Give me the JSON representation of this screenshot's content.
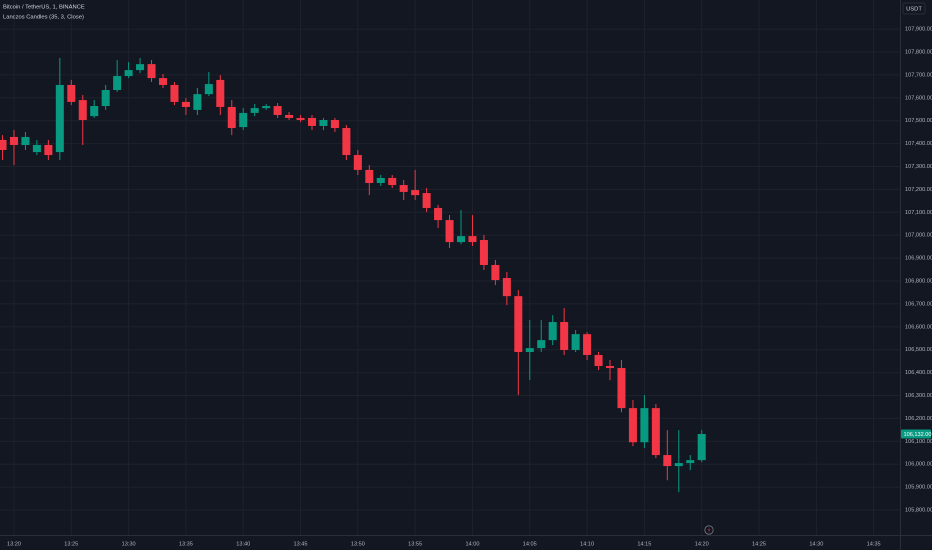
{
  "chart_data": {
    "type": "candlestick",
    "title": "Bitcoin / TetherUS, 1, BINANCE",
    "subtitle": "Lanczos Candles (35, 3, Close)",
    "currency": "USDT",
    "up_color": "#089981",
    "down_color": "#f23645",
    "grid": true,
    "x": [
      19,
      20,
      21,
      22,
      23,
      24,
      25,
      26,
      27,
      28,
      29,
      30,
      31,
      32,
      33,
      34,
      35,
      36,
      37,
      38,
      39,
      40,
      41,
      42,
      43,
      44,
      45,
      46,
      47,
      48,
      49,
      50,
      51,
      52,
      53,
      54,
      55,
      56,
      57,
      58,
      59,
      60,
      61,
      62,
      63,
      64,
      65,
      66,
      67,
      68,
      69,
      70,
      71,
      72,
      73,
      74,
      75,
      76,
      77,
      78,
      79,
      80
    ],
    "open": [
      107416,
      107429,
      107394,
      107363,
      107394,
      107363,
      107656,
      107590,
      107520,
      107564,
      107634,
      107695,
      107721,
      107747,
      107686,
      107656,
      107582,
      107547,
      107616,
      107678,
      107560,
      107472,
      107534,
      107555,
      107564,
      107525,
      107512,
      107512,
      107477,
      107503,
      107468,
      107350,
      107285,
      107228,
      107250,
      107219,
      107197,
      107184,
      107119,
      107066,
      106970,
      106996,
      106979,
      106870,
      106813,
      106734,
      106490,
      106507,
      106542,
      106621,
      106499,
      106568,
      106477,
      106429,
      106420,
      106245,
      106096,
      106245,
      106040,
      105992,
      106005,
      106018
    ],
    "high": [
      107437,
      107459,
      107451,
      107416,
      107416,
      107774,
      107678,
      107612,
      107590,
      107656,
      107765,
      107756,
      107774,
      107765,
      107704,
      107669,
      107599,
      107643,
      107713,
      107699,
      107590,
      107555,
      107573,
      107573,
      107577,
      107538,
      107525,
      107525,
      107512,
      107512,
      107481,
      107372,
      107306,
      107263,
      107263,
      107241,
      107285,
      107206,
      107132,
      107088,
      107110,
      107088,
      107001,
      106892,
      106839,
      106761,
      106630,
      106630,
      106651,
      106682,
      106586,
      106577,
      106490,
      106455,
      106455,
      106280,
      106302,
      106263,
      106149,
      106149,
      106040,
      106149
    ],
    "low": [
      107328,
      107306,
      107372,
      107350,
      107328,
      107328,
      107568,
      107394,
      107512,
      107547,
      107625,
      107686,
      107708,
      107669,
      107643,
      107568,
      107525,
      107525,
      107608,
      107525,
      107437,
      107459,
      107520,
      107547,
      107512,
      107503,
      107494,
      107459,
      107459,
      107451,
      107328,
      107263,
      107175,
      107215,
      107206,
      107154,
      107154,
      107101,
      107031,
      106944,
      106961,
      106953,
      106848,
      106782,
      106695,
      106302,
      106367,
      106490,
      106520,
      106477,
      106490,
      106455,
      106411,
      106367,
      106227,
      106079,
      106071,
      106027,
      105930,
      105878,
      105974,
      106009
    ],
    "close": [
      107372,
      107394,
      107429,
      107394,
      107350,
      107656,
      107582,
      107503,
      107564,
      107634,
      107695,
      107721,
      107747,
      107686,
      107656,
      107582,
      107560,
      107616,
      107660,
      107560,
      107468,
      107534,
      107555,
      107564,
      107525,
      107512,
      107503,
      107477,
      107503,
      107468,
      107350,
      107285,
      107228,
      107250,
      107219,
      107189,
      107175,
      107119,
      107066,
      106970,
      106996,
      106970,
      106870,
      106804,
      106734,
      106490,
      106507,
      106542,
      106621,
      106499,
      106568,
      106477,
      106429,
      106420,
      106245,
      106096,
      106245,
      106040,
      105992,
      106005,
      106018,
      106132
    ],
    "last_price": {
      "value": 106132,
      "label": "106,132.00"
    },
    "xlim": [
      18.78,
      97.3
    ],
    "xticks": [
      {
        "value": 20,
        "label": "13:20"
      },
      {
        "value": 25,
        "label": "13:25"
      },
      {
        "value": 30,
        "label": "13:30"
      },
      {
        "value": 35,
        "label": "13:35"
      },
      {
        "value": 40,
        "label": "13:40"
      },
      {
        "value": 45,
        "label": "13:45"
      },
      {
        "value": 50,
        "label": "13:50"
      },
      {
        "value": 55,
        "label": "13:55"
      },
      {
        "value": 60,
        "label": "14:00"
      },
      {
        "value": 65,
        "label": "14:05"
      },
      {
        "value": 70,
        "label": "14:10"
      },
      {
        "value": 75,
        "label": "14:15"
      },
      {
        "value": 80,
        "label": "14:20"
      },
      {
        "value": 85,
        "label": "14:25"
      },
      {
        "value": 90,
        "label": "14:30"
      },
      {
        "value": 95,
        "label": "14:35"
      }
    ],
    "ylim": [
      105691,
      108027
    ],
    "yticks": [
      {
        "value": 105800,
        "label": "105,800.00"
      },
      {
        "value": 105900,
        "label": "105,900.00"
      },
      {
        "value": 106000,
        "label": "106,000.00"
      },
      {
        "value": 106100,
        "label": "106,100.00"
      },
      {
        "value": 106200,
        "label": "106,200.00"
      },
      {
        "value": 106300,
        "label": "106,300.00"
      },
      {
        "value": 106400,
        "label": "106,400.00"
      },
      {
        "value": 106500,
        "label": "106,500.00"
      },
      {
        "value": 106600,
        "label": "106,600.00"
      },
      {
        "value": 106700,
        "label": "106,700.00"
      },
      {
        "value": 106800,
        "label": "106,800.00"
      },
      {
        "value": 106900,
        "label": "106,900.00"
      },
      {
        "value": 107000,
        "label": "107,000.00"
      },
      {
        "value": 107100,
        "label": "107,100.00"
      },
      {
        "value": 107200,
        "label": "107,200.00"
      },
      {
        "value": 107300,
        "label": "107,300.00"
      },
      {
        "value": 107400,
        "label": "107,400.00"
      },
      {
        "value": 107500,
        "label": "107,500.00"
      },
      {
        "value": 107600,
        "label": "107,600.00"
      },
      {
        "value": 107700,
        "label": "107,700.00"
      },
      {
        "value": 107800,
        "label": "107,800.00"
      },
      {
        "value": 107900,
        "label": "107,900.00"
      }
    ]
  }
}
